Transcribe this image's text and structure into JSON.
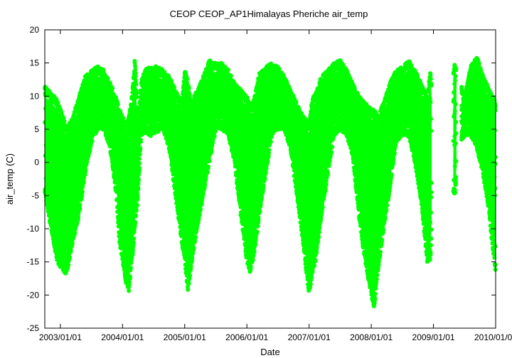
{
  "chart_data": {
    "type": "scatter",
    "title": "CEOP CEOP_AP1Himalayas Pheriche  air_temp",
    "xlabel": "Date",
    "ylabel": "air_temp (C)",
    "ylim": [
      -25,
      20
    ],
    "xlim": [
      2002.75,
      2010.0
    ],
    "y_ticks": [
      {
        "value": -25,
        "label": "-25"
      },
      {
        "value": -20,
        "label": "-20"
      },
      {
        "value": -15,
        "label": "-15"
      },
      {
        "value": -10,
        "label": "-10"
      },
      {
        "value": -5,
        "label": "-5"
      },
      {
        "value": 0,
        "label": "0"
      },
      {
        "value": 5,
        "label": "5"
      },
      {
        "value": 10,
        "label": "10"
      },
      {
        "value": 15,
        "label": "15"
      },
      {
        "value": 20,
        "label": "20"
      }
    ],
    "x_ticks": [
      {
        "value": 2003.0,
        "label": "2003/01/01"
      },
      {
        "value": 2004.0,
        "label": "2004/01/01"
      },
      {
        "value": 2005.0,
        "label": "2005/01/01"
      },
      {
        "value": 2006.0,
        "label": "2006/01/01"
      },
      {
        "value": 2007.0,
        "label": "2007/01/01"
      },
      {
        "value": 2008.0,
        "label": "2008/01/01"
      },
      {
        "value": 2009.0,
        "label": "2009/01/01"
      },
      {
        "value": 2010.0,
        "label": "2010/01/01"
      }
    ],
    "series": [
      {
        "name": "air_temp",
        "color": "#00ff00",
        "envelope": {
          "x": [
            2002.75,
            2002.85,
            2002.95,
            2003.0,
            2003.05,
            2003.1,
            2003.2,
            2003.3,
            2003.4,
            2003.5,
            2003.6,
            2003.7,
            2003.8,
            2003.9,
            2003.95,
            2004.0,
            2004.05,
            2004.1,
            2004.15,
            2004.2,
            2004.25,
            2004.3,
            2004.35,
            2004.45,
            2004.55,
            2004.65,
            2004.75,
            2004.85,
            2004.95,
            2005.0,
            2005.05,
            2005.1,
            2005.2,
            2005.3,
            2005.4,
            2005.5,
            2005.6,
            2005.7,
            2005.8,
            2005.9,
            2006.0,
            2006.05,
            2006.1,
            2006.2,
            2006.3,
            2006.4,
            2006.5,
            2006.6,
            2006.7,
            2006.8,
            2006.9,
            2007.0,
            2007.05,
            2007.1,
            2007.2,
            2007.3,
            2007.4,
            2007.5,
            2007.6,
            2007.7,
            2007.8,
            2007.9,
            2008.0,
            2008.05,
            2008.1,
            2008.2,
            2008.3,
            2008.4,
            2008.5,
            2008.6,
            2008.7,
            2008.8,
            2008.9,
            2008.95,
            2009.0,
            2009.35,
            2009.4,
            2009.5,
            2009.6,
            2009.7,
            2009.8,
            2009.9,
            2009.95,
            2010.0
          ],
          "high": [
            11.5,
            10.5,
            9.5,
            8.0,
            7.0,
            5.0,
            7.0,
            10.0,
            13.0,
            14.0,
            14.5,
            14.0,
            12.0,
            10.0,
            8.0,
            7.0,
            6.0,
            7.0,
            10.0,
            16.0,
            6.0,
            12.0,
            14.0,
            14.5,
            14.5,
            14.0,
            13.0,
            11.0,
            9.0,
            14.0,
            12.5,
            9.0,
            11.0,
            13.0,
            15.5,
            15.0,
            15.0,
            14.0,
            12.0,
            11.0,
            10.0,
            9.0,
            9.0,
            13.5,
            14.5,
            15.0,
            14.5,
            13.0,
            11.0,
            9.0,
            7.0,
            6.0,
            9.5,
            10.5,
            13.0,
            14.0,
            15.0,
            15.5,
            14.0,
            12.0,
            10.0,
            9.0,
            8.0,
            8.0,
            7.0,
            9.0,
            12.0,
            14.0,
            14.5,
            15.5,
            14.0,
            12.0,
            10.0,
            14.0,
            8.0,
            15.0,
            13.0,
            10.0,
            14.5,
            16.0,
            13.0,
            11.0,
            10.0,
            9.0
          ],
          "low": [
            -5.0,
            -10.0,
            -15.0,
            -16.0,
            -16.5,
            -17.0,
            -12.0,
            -8.0,
            -2.0,
            3.0,
            5.0,
            5.0,
            2.0,
            -5.0,
            -12.0,
            -15.0,
            -18.0,
            -19.5,
            -15.0,
            -10.0,
            -5.0,
            4.0,
            4.5,
            4.0,
            4.5,
            5.0,
            2.0,
            -5.0,
            -12.0,
            -15.0,
            -19.5,
            -16.0,
            -10.0,
            -5.0,
            0.0,
            5.0,
            5.0,
            4.0,
            0.0,
            -8.0,
            -15.0,
            -16.5,
            -15.0,
            -8.0,
            -2.0,
            4.0,
            5.0,
            5.0,
            2.0,
            -5.0,
            -12.0,
            -20.0,
            -17.0,
            -15.0,
            -8.0,
            -2.0,
            4.0,
            5.0,
            4.0,
            1.0,
            -8.0,
            -15.0,
            -20.0,
            -22.0,
            -17.0,
            -10.0,
            -4.0,
            3.0,
            4.0,
            4.0,
            0.0,
            -6.0,
            -15.0,
            -15.0,
            -3.0,
            -5.0,
            2.0,
            4.0,
            4.0,
            2.0,
            -2.0,
            -8.0,
            -13.0,
            -16.5
          ]
        }
      }
    ],
    "notes": "Dense hourly scatter; data shown as envelope of min/max extent with gaps near 2009.0 and 2009.35."
  }
}
